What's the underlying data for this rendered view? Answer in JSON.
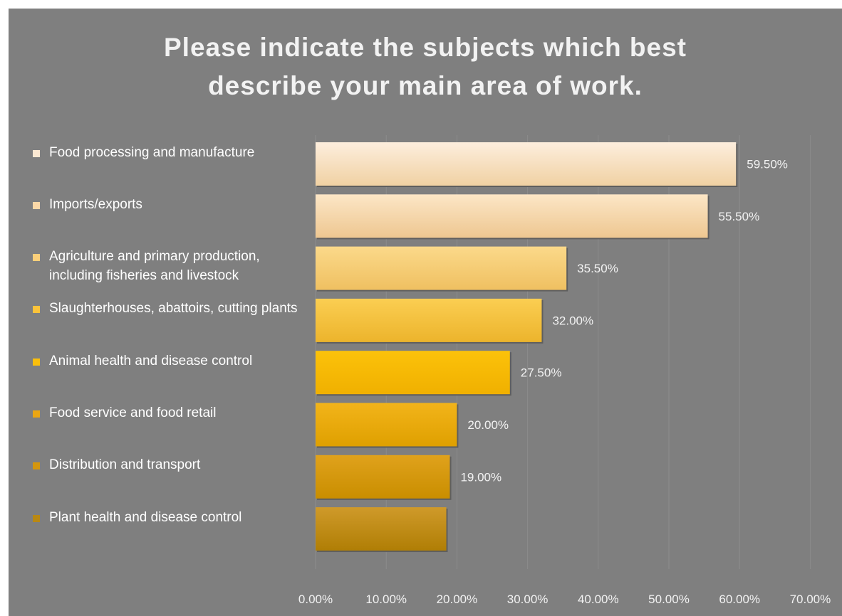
{
  "chart_data": {
    "type": "bar",
    "orientation": "horizontal",
    "title": "Please indicate the subjects which best\ndescribe your main area of work.",
    "categories": [
      "Food processing and manufacture",
      "Imports/exports",
      "Agriculture and primary production, including fisheries and livestock",
      "Slaughterhouses, abattoirs, cutting plants",
      "Animal health and disease control",
      "Food service and food retail",
      "Distribution and transport",
      "Plant health and disease control"
    ],
    "values": [
      59.5,
      55.5,
      35.5,
      32.0,
      27.5,
      20.0,
      19.0,
      18.5
    ],
    "value_labels": [
      "59.50%",
      "55.50%",
      "35.50%",
      "32.00%",
      "27.50%",
      "20.00%",
      "19.00%",
      ""
    ],
    "bar_colors": [
      [
        "#fdeedd",
        "#f0d1a3"
      ],
      [
        "#fce6c6",
        "#eec791"
      ],
      [
        "#fbd98a",
        "#efc061"
      ],
      [
        "#fbce52",
        "#ecb42c"
      ],
      [
        "#fcc20a",
        "#f0b000"
      ],
      [
        "#f2b41a",
        "#dfa000"
      ],
      [
        "#e0a21c",
        "#c98e00"
      ],
      [
        "#cf9a2a",
        "#b07e05"
      ]
    ],
    "swatch_colors": [
      "#fbe8d2",
      "#fcd9a8",
      "#fbcf7a",
      "#fbc33a",
      "#fbbf0b",
      "#eba613",
      "#d4960e",
      "#b98813"
    ],
    "x_ticks": [
      "0.00%",
      "10.00%",
      "20.00%",
      "30.00%",
      "40.00%",
      "50.00%",
      "60.00%",
      "70.00%"
    ],
    "xlim": [
      0,
      70
    ],
    "grid": true,
    "legend": "left",
    "background_color": "#7f7f7f"
  }
}
